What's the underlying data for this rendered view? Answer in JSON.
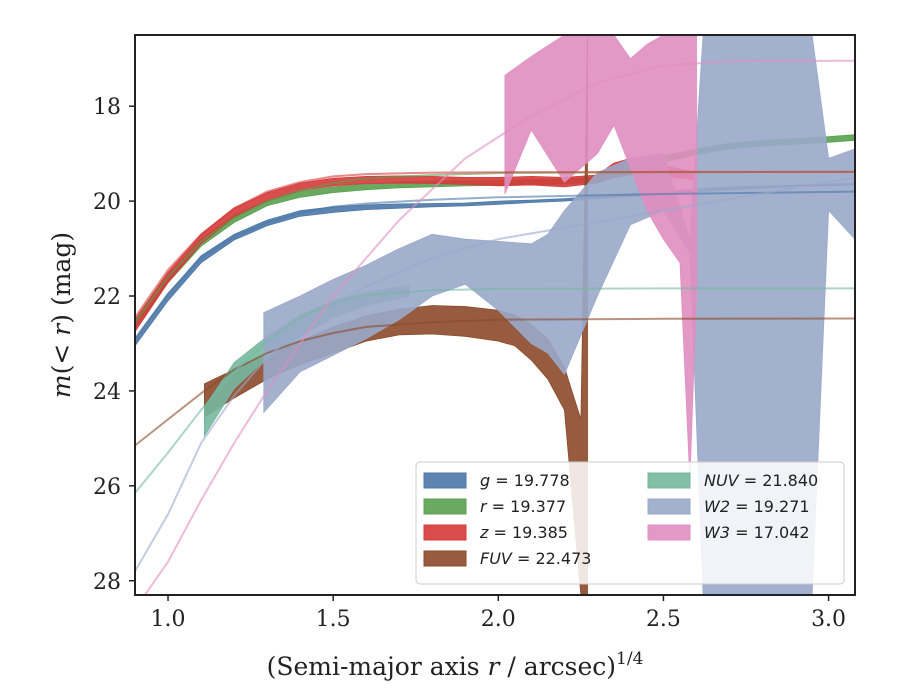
{
  "chart_data": {
    "type": "area",
    "xlabel": "(Semi-major axis r / arcsec)",
    "xlabel_main": "(Semi-major axis ",
    "xlabel_var": "r",
    "xlabel_rest": " / arcsec)",
    "xlabel_sup": "1/4",
    "ylabel": "m(< r) (mag)",
    "ylabel_m": "m",
    "ylabel_open": "(",
    "ylabel_lt": "< ",
    "ylabel_r": "r",
    "ylabel_close": ")",
    "ylabel_unit": " (mag)",
    "xlim": [
      0.9,
      3.08
    ],
    "ylim": [
      28.3,
      16.5
    ],
    "y_inverted": true,
    "xticks": [
      1.0,
      1.5,
      2.0,
      2.5,
      3.0
    ],
    "xtick_labels": [
      "1.0",
      "1.5",
      "2.0",
      "2.5",
      "3.0"
    ],
    "yticks": [
      18,
      20,
      22,
      24,
      26,
      28
    ],
    "ytick_labels": [
      "18",
      "20",
      "22",
      "24",
      "26",
      "28"
    ],
    "grid": false,
    "legend_position": "lower-right",
    "series": [
      {
        "name": "g = 19.778",
        "band": "g",
        "value_text": "19.778",
        "total": 19.778,
        "color": "#4c78a8",
        "band_x": [
          0.9,
          1.0,
          1.1,
          1.2,
          1.3,
          1.4,
          1.5,
          1.6,
          1.7,
          1.8,
          1.9,
          2.0,
          2.1,
          2.2,
          2.3,
          2.4,
          2.5,
          2.6,
          2.7,
          2.8,
          2.9,
          3.0,
          3.08
        ],
        "band_upper": [
          22.9,
          21.95,
          21.15,
          20.7,
          20.4,
          20.2,
          20.12,
          20.08,
          20.06,
          20.05,
          20.04,
          20.0,
          19.98,
          19.95,
          19.9,
          19.85,
          19.8,
          19.75,
          19.7,
          19.68,
          19.66,
          19.64,
          19.62
        ],
        "band_lower": [
          23.05,
          22.1,
          21.3,
          20.82,
          20.52,
          20.32,
          20.24,
          20.18,
          20.15,
          20.12,
          20.1,
          20.07,
          20.03,
          20.0,
          19.95,
          19.9,
          19.85,
          19.8,
          19.76,
          19.73,
          19.7,
          19.68,
          19.66
        ],
        "model_x": [
          0.9,
          1.0,
          1.1,
          1.2,
          1.3,
          1.4,
          1.5,
          1.6,
          1.8,
          2.0,
          2.5,
          3.08
        ],
        "model_y": [
          22.9,
          21.95,
          21.2,
          20.75,
          20.45,
          20.25,
          20.12,
          20.05,
          19.97,
          19.92,
          19.85,
          19.8
        ]
      },
      {
        "name": "r = 19.377",
        "band": "r",
        "value_text": "19.377",
        "total": 19.377,
        "color": "#59a14f",
        "band_x": [
          0.9,
          1.0,
          1.1,
          1.2,
          1.3,
          1.4,
          1.5,
          1.6,
          1.7,
          1.8,
          1.9,
          2.0,
          2.1,
          2.2,
          2.3,
          2.4,
          2.5,
          2.6,
          2.7,
          2.8,
          2.9,
          3.0,
          3.08
        ],
        "band_upper": [
          22.5,
          21.55,
          20.8,
          20.3,
          19.98,
          19.8,
          19.7,
          19.64,
          19.6,
          19.58,
          19.57,
          19.56,
          19.55,
          19.53,
          19.5,
          19.3,
          19.05,
          18.9,
          18.78,
          18.72,
          18.68,
          18.64,
          18.6
        ],
        "band_lower": [
          22.7,
          21.72,
          20.95,
          20.45,
          20.1,
          19.92,
          19.82,
          19.76,
          19.72,
          19.7,
          19.68,
          19.67,
          19.66,
          19.64,
          19.6,
          19.42,
          19.18,
          19.02,
          18.9,
          18.84,
          18.8,
          18.76,
          18.72
        ],
        "model_x": [
          0.9,
          1.0,
          1.1,
          1.2,
          1.3,
          1.4,
          1.5,
          1.6,
          1.8,
          2.0,
          2.5,
          3.08
        ],
        "model_y": [
          22.55,
          21.6,
          20.85,
          20.35,
          20.0,
          19.78,
          19.62,
          19.52,
          19.45,
          19.41,
          19.39,
          19.38
        ]
      },
      {
        "name": "z = 19.385",
        "band": "z",
        "value_text": "19.385",
        "total": 19.385,
        "color": "#d63a3a",
        "band_x": [
          0.9,
          1.0,
          1.1,
          1.2,
          1.3,
          1.4,
          1.5,
          1.6,
          1.7,
          1.8,
          1.9,
          2.0,
          2.1,
          2.2,
          2.3,
          2.35,
          2.4,
          2.5,
          2.6
        ],
        "band_upper": [
          22.5,
          21.5,
          20.7,
          20.15,
          19.82,
          19.62,
          19.52,
          19.48,
          19.47,
          19.48,
          19.5,
          19.5,
          19.48,
          19.5,
          19.45,
          19.2,
          19.1,
          19.25,
          19.4
        ],
        "band_lower": [
          22.75,
          21.72,
          20.9,
          20.35,
          20.0,
          19.78,
          19.68,
          19.63,
          19.62,
          19.63,
          19.65,
          19.68,
          19.66,
          19.7,
          19.62,
          19.5,
          19.45,
          19.48,
          19.55
        ],
        "model_x": [
          0.9,
          1.0,
          1.1,
          1.2,
          1.3,
          1.4,
          1.5,
          1.6,
          1.8,
          2.0,
          2.5,
          3.08
        ],
        "model_y": [
          22.45,
          21.45,
          20.7,
          20.15,
          19.8,
          19.6,
          19.48,
          19.43,
          19.4,
          19.39,
          19.385,
          19.385
        ]
      },
      {
        "name": "FUV = 22.473",
        "band": "FUV",
        "value_text": "22.473",
        "total": 22.473,
        "color": "#8c4a2a",
        "band_x": [
          1.11,
          1.2,
          1.3,
          1.4,
          1.5,
          1.6,
          1.7,
          1.8,
          1.9,
          2.0,
          2.05,
          2.1,
          2.15,
          2.2,
          2.25,
          2.27
        ],
        "band_upper": [
          23.85,
          23.55,
          23.2,
          22.95,
          22.65,
          22.42,
          22.28,
          22.2,
          22.22,
          22.3,
          22.4,
          22.6,
          22.9,
          23.5,
          24.6,
          16.5
        ],
        "band_lower": [
          24.55,
          24.15,
          23.75,
          23.45,
          23.2,
          22.95,
          22.82,
          22.8,
          22.85,
          22.95,
          23.05,
          23.35,
          23.75,
          24.4,
          28.3,
          28.3
        ],
        "model_x": [
          0.9,
          1.0,
          1.1,
          1.2,
          1.3,
          1.4,
          1.5,
          1.6,
          1.8,
          2.0,
          2.5,
          3.08
        ],
        "model_y": [
          25.15,
          24.6,
          24.05,
          23.55,
          23.2,
          22.95,
          22.78,
          22.65,
          22.55,
          22.5,
          22.48,
          22.473
        ]
      },
      {
        "name": "NUV = 21.840",
        "band": "NUV",
        "value_text": "21.840",
        "total": 21.84,
        "color": "#76b7a0",
        "band_x": [
          1.11,
          1.2,
          1.3,
          1.4,
          1.5,
          1.6,
          1.73
        ],
        "band_upper": [
          24.35,
          23.4,
          22.85,
          22.4,
          22.1,
          21.92,
          21.78
        ],
        "band_lower": [
          24.95,
          23.95,
          23.3,
          22.85,
          22.45,
          22.2,
          22.0
        ],
        "model_x": [
          0.9,
          1.0,
          1.1,
          1.2,
          1.3,
          1.4,
          1.5,
          1.6,
          1.8,
          2.0,
          2.5,
          3.08
        ],
        "model_y": [
          26.15,
          25.3,
          24.4,
          23.6,
          22.95,
          22.45,
          22.15,
          21.98,
          21.88,
          21.85,
          21.84,
          21.84
        ]
      },
      {
        "name": "W2 = 19.271",
        "band": "W2",
        "value_text": "19.271",
        "total": 19.271,
        "color": "#9aa9c9",
        "band_x": [
          1.29,
          1.4,
          1.5,
          1.6,
          1.7,
          1.8,
          1.9,
          2.0,
          2.1,
          2.15,
          2.2,
          2.3,
          2.4,
          2.5,
          2.58,
          2.62,
          2.65,
          2.7,
          2.8,
          2.9,
          2.95,
          3.0,
          3.08
        ],
        "band_upper": [
          22.35,
          22.0,
          21.65,
          21.35,
          21.0,
          20.7,
          20.8,
          20.85,
          20.9,
          20.7,
          20.2,
          19.4,
          19.1,
          19.0,
          20.8,
          16.5,
          16.5,
          16.5,
          16.5,
          16.5,
          16.5,
          19.1,
          18.9
        ],
        "band_lower": [
          24.45,
          23.6,
          23.25,
          22.9,
          22.5,
          22.0,
          21.75,
          22.3,
          23.0,
          23.2,
          23.65,
          22.0,
          20.5,
          20.2,
          21.1,
          28.3,
          28.3,
          28.3,
          28.3,
          28.3,
          28.3,
          20.2,
          20.8
        ],
        "model_x": [
          0.9,
          1.0,
          1.1,
          1.2,
          1.3,
          1.4,
          1.5,
          1.6,
          1.8,
          2.0,
          2.5,
          3.08
        ],
        "model_y": [
          27.8,
          26.6,
          25.1,
          24.1,
          23.3,
          22.7,
          22.2,
          21.8,
          21.2,
          20.8,
          20.2,
          19.5
        ]
      },
      {
        "name": "W3 = 17.042",
        "band": "W3",
        "value_text": "17.042",
        "total": 17.042,
        "color": "#e08ec0",
        "band_x": [
          2.02,
          2.1,
          2.2,
          2.25,
          2.3,
          2.35,
          2.4,
          2.45,
          2.5,
          2.55,
          2.58,
          2.6
        ],
        "band_upper": [
          17.35,
          16.95,
          16.5,
          16.5,
          16.5,
          16.5,
          17.0,
          16.7,
          16.5,
          16.5,
          16.5,
          16.5
        ],
        "band_lower": [
          19.85,
          18.5,
          19.6,
          19.3,
          19.0,
          18.4,
          19.3,
          20.2,
          20.8,
          21.3,
          25.9,
          21.9
        ],
        "model_x": [
          0.9,
          1.0,
          1.1,
          1.2,
          1.3,
          1.5,
          1.7,
          1.9,
          2.1,
          2.3,
          2.5,
          2.7,
          3.08
        ],
        "model_y": [
          28.6,
          27.6,
          26.3,
          25.1,
          24.0,
          22.0,
          20.4,
          19.1,
          18.2,
          17.5,
          17.15,
          17.05,
          17.042
        ]
      }
    ]
  }
}
